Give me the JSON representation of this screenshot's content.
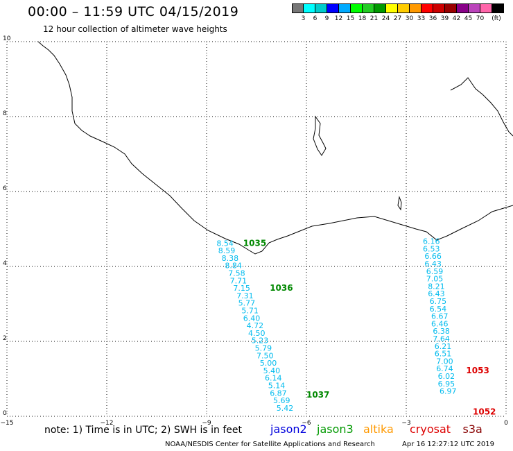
{
  "header": {
    "title": "00:00 – 11:59 UTC 04/15/2019",
    "subtitle": "12 hour collection of altimeter wave heights"
  },
  "color_scale": {
    "colors": [
      "#777777",
      "#00ffff",
      "#00cccc",
      "#0000ff",
      "#00aaff",
      "#00ff00",
      "#22cc22",
      "#009900",
      "#ffff00",
      "#ffcc00",
      "#ff9900",
      "#ff0000",
      "#cc0000",
      "#990000",
      "#880088",
      "#bb44bb",
      "#ff66aa",
      "#000000"
    ],
    "labels": [
      "3",
      "6",
      "9",
      "12",
      "15",
      "18",
      "21",
      "24",
      "27",
      "30",
      "33",
      "36",
      "39",
      "42",
      "45",
      "70"
    ],
    "unit": "(ft)"
  },
  "axes": {
    "x_ticks": [
      "−15",
      "−12",
      "−9",
      "−6",
      "−3",
      "0"
    ],
    "y_ticks": [
      "0",
      "2",
      "4",
      "6",
      "8",
      "10"
    ],
    "x_range": [
      -15,
      0
    ],
    "y_range": [
      0,
      10
    ],
    "grid": true
  },
  "tracks": [
    {
      "satellite": "jason2",
      "color": "#00bbee",
      "points": [
        {
          "lon": -8.7,
          "lat": 4.55,
          "swh": "8.54"
        },
        {
          "lon": -8.65,
          "lat": 4.35,
          "swh": "8.59"
        },
        {
          "lon": -8.55,
          "lat": 4.15,
          "swh": "8.38"
        },
        {
          "lon": -8.45,
          "lat": 3.95,
          "swh": "8.84"
        },
        {
          "lon": -8.35,
          "lat": 3.75,
          "swh": "7.58"
        },
        {
          "lon": -8.3,
          "lat": 3.55,
          "swh": "7.71"
        },
        {
          "lon": -8.2,
          "lat": 3.35,
          "swh": "7.15"
        },
        {
          "lon": -8.1,
          "lat": 3.15,
          "swh": "7.31"
        },
        {
          "lon": -8.05,
          "lat": 2.95,
          "swh": "5.77"
        },
        {
          "lon": -7.95,
          "lat": 2.75,
          "swh": "5.71"
        },
        {
          "lon": -7.9,
          "lat": 2.55,
          "swh": "6.40"
        },
        {
          "lon": -7.8,
          "lat": 2.35,
          "swh": "4.72"
        },
        {
          "lon": -7.75,
          "lat": 2.15,
          "swh": "4.50"
        },
        {
          "lon": -7.65,
          "lat": 1.95,
          "swh": "5.23"
        },
        {
          "lon": -7.55,
          "lat": 1.75,
          "swh": "5.79"
        },
        {
          "lon": -7.5,
          "lat": 1.55,
          "swh": "7.50"
        },
        {
          "lon": -7.4,
          "lat": 1.35,
          "swh": "5.00"
        },
        {
          "lon": -7.3,
          "lat": 1.15,
          "swh": "5.40"
        },
        {
          "lon": -7.25,
          "lat": 0.95,
          "swh": "6.14"
        },
        {
          "lon": -7.15,
          "lat": 0.75,
          "swh": "5.14"
        },
        {
          "lon": -7.1,
          "lat": 0.55,
          "swh": "6.87"
        },
        {
          "lon": -7.0,
          "lat": 0.35,
          "swh": "5.69"
        },
        {
          "lon": -6.9,
          "lat": 0.15,
          "swh": "5.42"
        }
      ]
    },
    {
      "satellite": "jason3",
      "color": "#00bbee",
      "points": [
        {
          "lon": -2.5,
          "lat": 4.6,
          "swh": "6.16"
        },
        {
          "lon": -2.5,
          "lat": 4.4,
          "swh": "6.53"
        },
        {
          "lon": -2.45,
          "lat": 4.2,
          "swh": "6.66"
        },
        {
          "lon": -2.45,
          "lat": 4.0,
          "swh": "6.43"
        },
        {
          "lon": -2.4,
          "lat": 3.8,
          "swh": "6.59"
        },
        {
          "lon": -2.4,
          "lat": 3.6,
          "swh": "7.05"
        },
        {
          "lon": -2.35,
          "lat": 3.4,
          "swh": "8.21"
        },
        {
          "lon": -2.35,
          "lat": 3.2,
          "swh": "6.43"
        },
        {
          "lon": -2.3,
          "lat": 3.0,
          "swh": "6.75"
        },
        {
          "lon": -2.3,
          "lat": 2.8,
          "swh": "6.54"
        },
        {
          "lon": -2.25,
          "lat": 2.6,
          "swh": "6.67"
        },
        {
          "lon": -2.25,
          "lat": 2.4,
          "swh": "6.46"
        },
        {
          "lon": -2.2,
          "lat": 2.2,
          "swh": "6.38"
        },
        {
          "lon": -2.2,
          "lat": 2.0,
          "swh": "7.64"
        },
        {
          "lon": -2.15,
          "lat": 1.8,
          "swh": "6.21"
        },
        {
          "lon": -2.15,
          "lat": 1.6,
          "swh": "6.51"
        },
        {
          "lon": -2.1,
          "lat": 1.4,
          "swh": "7.00"
        },
        {
          "lon": -2.1,
          "lat": 1.2,
          "swh": "6.74"
        },
        {
          "lon": -2.05,
          "lat": 1.0,
          "swh": "6.02"
        },
        {
          "lon": -2.05,
          "lat": 0.8,
          "swh": "6.95"
        },
        {
          "lon": -2.0,
          "lat": 0.6,
          "swh": "6.97"
        }
      ]
    }
  ],
  "time_labels": [
    {
      "text": "1035",
      "color": "#008800",
      "lon": -7.9,
      "lat": 4.55
    },
    {
      "text": "1036",
      "color": "#008800",
      "lon": -7.1,
      "lat": 3.35
    },
    {
      "text": "1037",
      "color": "#008800",
      "lon": -6.0,
      "lat": 0.5
    },
    {
      "text": "1053",
      "color": "#dd0000",
      "lon": -1.2,
      "lat": 1.15
    },
    {
      "text": "1052",
      "color": "#dd0000",
      "lon": -1.0,
      "lat": 0.05
    }
  ],
  "footer": {
    "note": "note: 1) Time is in UTC; 2) SWH is in feet",
    "legend": [
      {
        "name": "jason2",
        "color": "#0000dd"
      },
      {
        "name": "jason3",
        "color": "#009900"
      },
      {
        "name": "altika",
        "color": "#ff9900"
      },
      {
        "name": "cryosat",
        "color": "#dd0000"
      },
      {
        "name": "s3a",
        "color": "#880000"
      }
    ],
    "credit": "NOAA/NESDIS Center for Satellite Applications and Research",
    "timestamp": "Apr 16 12:27:12 UTC 2019"
  }
}
